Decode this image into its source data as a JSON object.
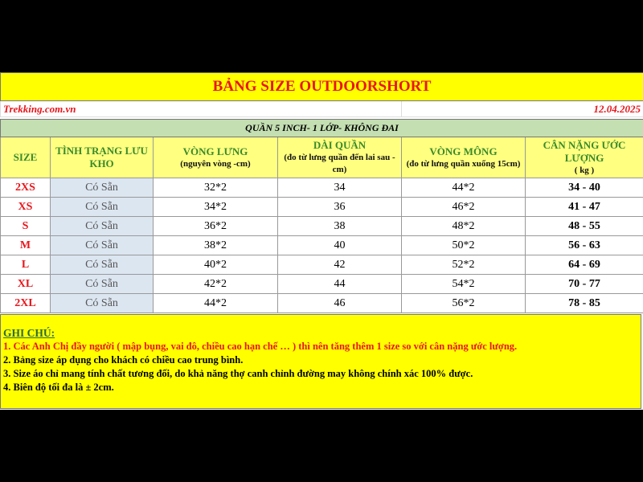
{
  "title": "BẢNG SIZE OUTDOORSHORT",
  "site": "Trekking.com.vn",
  "date": "12.04.2025",
  "section": "QUẦN 5 INCH- 1 LỚP-  KHÔNG ĐAI",
  "headers": [
    {
      "main": "SIZE",
      "sub": ""
    },
    {
      "main": "TÌNH TRẠNG LƯU KHO",
      "sub": ""
    },
    {
      "main": "VÒNG LƯNG",
      "sub": "(nguyên vòng -cm)"
    },
    {
      "main": "DÀI QUẦN",
      "sub": "(đo từ lưng quần đến lai sau - cm)"
    },
    {
      "main": "VÒNG MÔNG",
      "sub": "(đo từ lưng quần xuống 15cm)"
    },
    {
      "main": "CÂN NẶNG ƯỚC LƯỢNG",
      "sub": "( kg )"
    }
  ],
  "rows": [
    [
      "2XS",
      "Có Sẵn",
      "32*2",
      "34",
      "44*2",
      "34 - 40"
    ],
    [
      "XS",
      "Có Sẵn",
      "34*2",
      "36",
      "46*2",
      "41 - 47"
    ],
    [
      "S",
      "Có Sẵn",
      "36*2",
      "38",
      "48*2",
      "48 - 55"
    ],
    [
      "M",
      "Có Sẵn",
      "38*2",
      "40",
      "50*2",
      "56 - 63"
    ],
    [
      "L",
      "Có Sẵn",
      "40*2",
      "42",
      "52*2",
      "64 - 69"
    ],
    [
      "XL",
      "Có Sẵn",
      "42*2",
      "44",
      "54*2",
      "70 - 77"
    ],
    [
      "2XL",
      "Có Sẵn",
      "44*2",
      "46",
      "56*2",
      "78 - 85"
    ]
  ],
  "notes": {
    "title": "GHI CHÚ:",
    "items": [
      "1. Các Anh Chị đầy người ( mập bụng, vai đô, chiều cao hạn chế … ) thì nên tăng thêm 1 size so với cân nặng ước lượng.",
      "2. Bảng size áp dụng cho khách có chiều cao trung bình.",
      "3. Size áo chỉ mang tính chất tương đối, do khả năng thợ canh chỉnh đường may không chính xác 100% được.",
      "4. Biên độ tối đa là ± 2cm."
    ]
  },
  "colors": {
    "title_bg": "#ffff00",
    "accent_red": "#e8161b",
    "section_bg": "#c4dfb2",
    "header_text": "#3a8a2a",
    "stock_bg": "#dce6f1"
  }
}
